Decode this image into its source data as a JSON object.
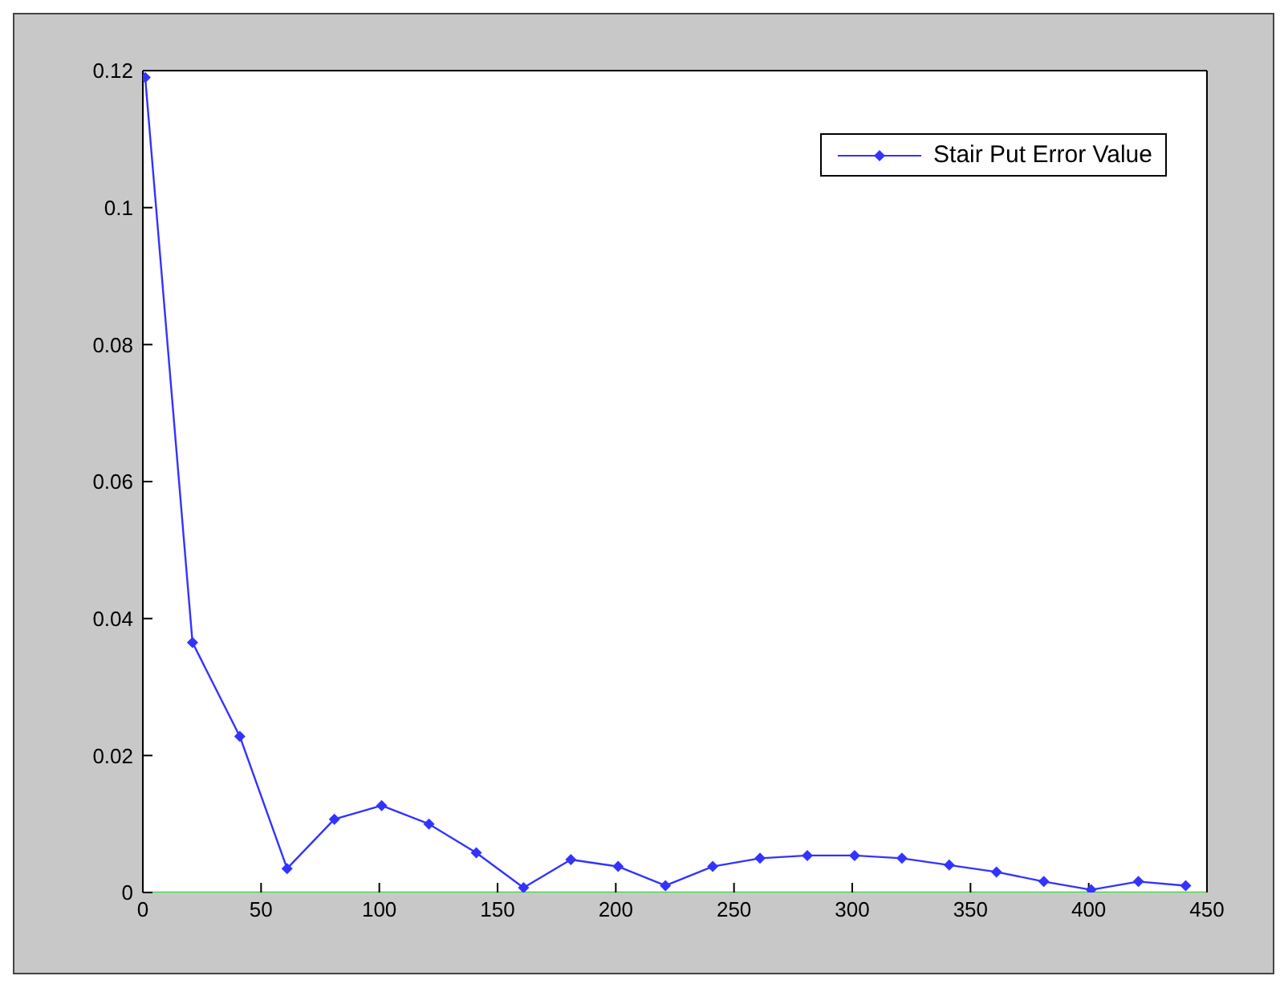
{
  "chart_data": {
    "type": "line",
    "x": [
      1,
      21,
      41,
      61,
      81,
      101,
      121,
      141,
      161,
      181,
      201,
      221,
      241,
      261,
      281,
      301,
      321,
      341,
      361,
      381,
      401,
      421,
      441
    ],
    "series": [
      {
        "name": "Stair Put Error Value",
        "color": "#3333ff",
        "values": [
          0.119,
          0.0365,
          0.0228,
          0.0035,
          0.0107,
          0.0127,
          0.01,
          0.0058,
          0.0007,
          0.0048,
          0.0038,
          0.001,
          0.0038,
          0.005,
          0.0054,
          0.0054,
          0.005,
          0.004,
          0.003,
          0.0016,
          0.0004,
          0.0016,
          0.001
        ]
      },
      {
        "color": "#33dd33",
        "x": [
          0,
          450
        ],
        "values": [
          0,
          0
        ],
        "marker": "none"
      }
    ],
    "xlim": [
      0,
      450
    ],
    "xticks": [
      0,
      50,
      100,
      150,
      200,
      250,
      300,
      350,
      400,
      450
    ],
    "ylim": [
      0,
      0.12
    ],
    "yticks": [
      0,
      0.02,
      0.04,
      0.06,
      0.08,
      0.1,
      0.12
    ],
    "legend": "top right",
    "marker": "diamond",
    "line_style": "solid",
    "grid": false
  }
}
